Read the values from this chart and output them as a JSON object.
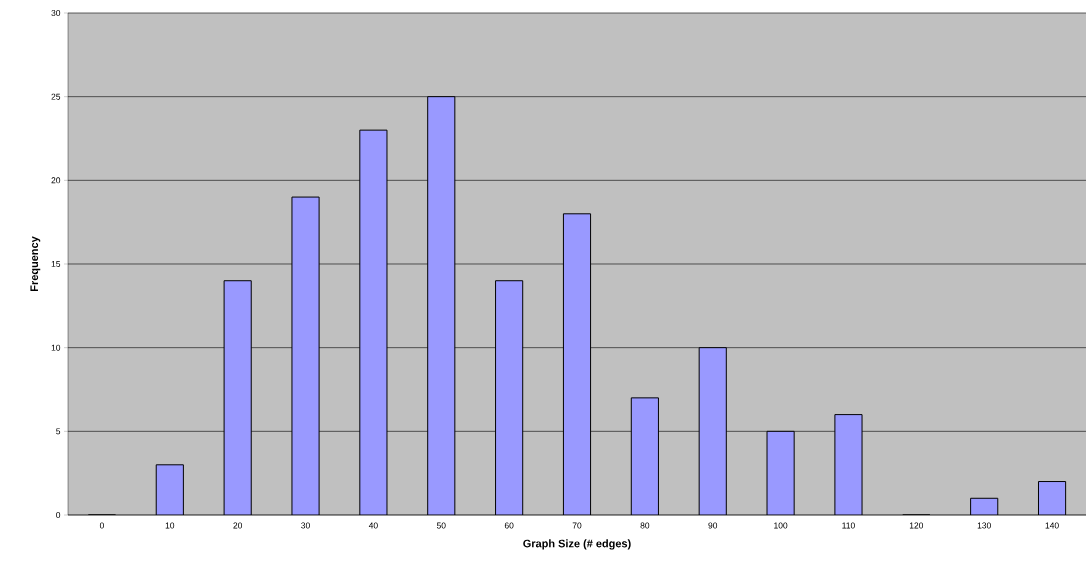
{
  "chart_data": {
    "type": "bar",
    "xlabel": "Graph Size (# edges)",
    "ylabel": "Frequency",
    "categories": [
      "0",
      "10",
      "20",
      "30",
      "40",
      "50",
      "60",
      "70",
      "80",
      "90",
      "100",
      "110",
      "120",
      "130",
      "140"
    ],
    "values": [
      0,
      3,
      14,
      19,
      23,
      25,
      14,
      18,
      7,
      10,
      5,
      6,
      0,
      1,
      2
    ],
    "color": "#9999ff",
    "ylim": [
      0,
      30
    ],
    "yticks": [
      0,
      5,
      10,
      15,
      20,
      25,
      30
    ],
    "grid": "y"
  }
}
